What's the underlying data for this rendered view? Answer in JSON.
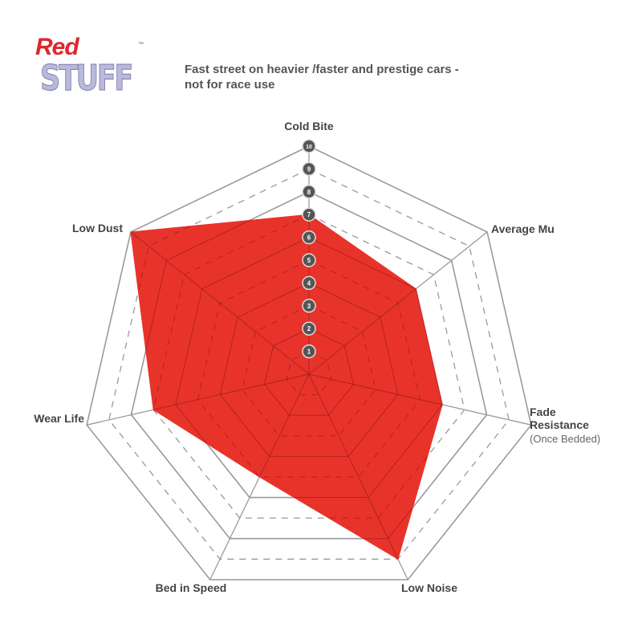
{
  "logo": {
    "line1": "Red",
    "line2": "STUFF",
    "trademark": "™"
  },
  "subtitle": {
    "line1": "Fast street on heavier /faster and prestige cars -",
    "line2": "not for race use"
  },
  "chart_data": {
    "type": "radar",
    "axes": [
      "Cold Bite",
      "Average Mu",
      "Fade Resistance",
      "Low Noise",
      "Bed in Speed",
      "Wear Life",
      "Low Dust"
    ],
    "axis_sublabels": {
      "Fade Resistance": "(Once Bedded)"
    },
    "values": [
      7,
      6,
      6,
      9,
      5,
      7,
      10
    ],
    "range": [
      0,
      10
    ],
    "tick_labels": [
      "1",
      "2",
      "3",
      "4",
      "5",
      "6",
      "7",
      "8",
      "9",
      "10"
    ],
    "fill_color": "#e8332b",
    "grid_color": "#9a9a9a"
  }
}
